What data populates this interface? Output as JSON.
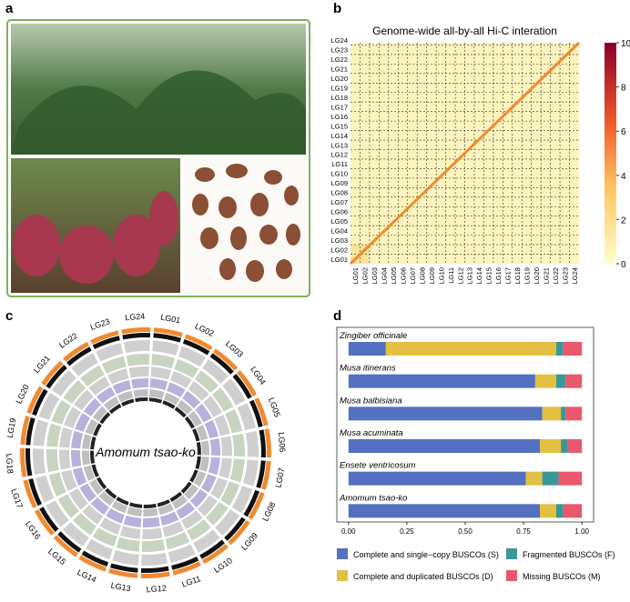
{
  "panel_labels": [
    "a",
    "b",
    "c",
    "d"
  ],
  "chart_data": [
    {
      "type": "heatmap",
      "title": "Genome-wide all-by-all Hi-C interation",
      "categories": [
        "LG01",
        "LG02",
        "LG03",
        "LG04",
        "LG05",
        "LG06",
        "LG07",
        "LG08",
        "LG09",
        "LG10",
        "LG11",
        "LG12",
        "LG13",
        "LG14",
        "LG15",
        "LG16",
        "LG17",
        "LG18",
        "LG19",
        "LG20",
        "LG21",
        "LG22",
        "LG23",
        "LG24"
      ],
      "clim": [
        0,
        10
      ],
      "cticks": [
        0,
        2,
        4,
        6,
        8,
        10
      ]
    },
    {
      "type": "circos",
      "title": "Amomum tsao-ko",
      "categories": [
        "LG01",
        "LG02",
        "LG03",
        "LG04",
        "LG05",
        "LG06",
        "LG07",
        "LG08",
        "LG09",
        "LG10",
        "LG11",
        "LG12",
        "LG13",
        "LG14",
        "LG15",
        "LG16",
        "LG17",
        "LG18",
        "LG19",
        "LG20",
        "LG21",
        "LG22",
        "LG23",
        "LG24"
      ]
    },
    {
      "type": "bar",
      "orientation": "horizontal",
      "stacked": true,
      "categories": [
        "Zingiber officinale",
        "Musa itinerans",
        "Musa balbisiana",
        "Musa acuminata",
        "Ensete ventricosum",
        "Amomum tsao-ko"
      ],
      "series": [
        {
          "name": "Complete and single−copy BUSCOs (S)",
          "color": "#5470c0",
          "values": [
            0.16,
            0.8,
            0.83,
            0.82,
            0.76,
            0.82
          ]
        },
        {
          "name": "Complete and duplicated BUSCOs (D)",
          "color": "#e3c043",
          "values": [
            0.73,
            0.09,
            0.08,
            0.09,
            0.07,
            0.07
          ]
        },
        {
          "name": "Fragmented BUSCOs (F)",
          "color": "#3a9799",
          "values": [
            0.03,
            0.04,
            0.02,
            0.03,
            0.07,
            0.03
          ]
        },
        {
          "name": "Missing BUSCOs (M)",
          "color": "#e9586b",
          "values": [
            0.08,
            0.07,
            0.07,
            0.06,
            0.1,
            0.08
          ]
        }
      ],
      "xlim": [
        -0.05,
        1.05
      ],
      "xticks": [
        {
          "value": 0,
          "label": "0.00"
        },
        {
          "value": 0.25,
          "label": "0.25"
        },
        {
          "value": 0.5,
          "label": "0.50"
        },
        {
          "value": 0.75,
          "label": "0.75"
        },
        {
          "value": 1,
          "label": "1.00"
        }
      ]
    }
  ]
}
